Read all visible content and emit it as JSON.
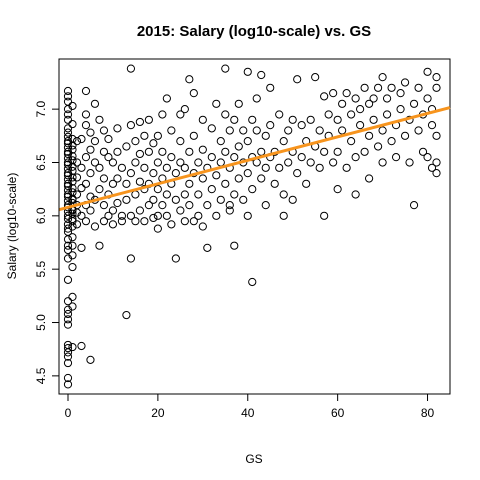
{
  "chart_data": {
    "type": "scatter",
    "title": "2015: Salary (log10-scale) vs. GS",
    "xlabel": "GS",
    "ylabel": "Salary (log10-scale)",
    "xlim": [
      -2,
      85
    ],
    "ylim": [
      4.33,
      7.47
    ],
    "xticks": [
      0,
      20,
      40,
      60,
      80
    ],
    "yticks": [
      4.5,
      5.0,
      5.5,
      6.0,
      6.5,
      7.0
    ],
    "fit_line": {
      "intercept": 6.08,
      "slope": 0.011,
      "color": "#f7941d"
    },
    "points": [
      [
        0,
        4.42
      ],
      [
        0,
        4.48
      ],
      [
        0,
        4.62
      ],
      [
        0,
        4.68
      ],
      [
        0,
        4.72
      ],
      [
        0,
        4.76
      ],
      [
        0,
        4.79
      ],
      [
        1,
        4.77
      ],
      [
        0,
        4.98
      ],
      [
        0,
        5.03
      ],
      [
        0,
        5.08
      ],
      [
        0,
        5.12
      ],
      [
        1,
        5.15
      ],
      [
        0,
        5.2
      ],
      [
        1,
        5.24
      ],
      [
        0,
        5.4
      ],
      [
        1,
        5.52
      ],
      [
        0,
        5.6
      ],
      [
        1,
        5.63
      ],
      [
        0,
        5.68
      ],
      [
        0,
        5.72
      ],
      [
        1,
        5.72
      ],
      [
        0,
        5.78
      ],
      [
        1,
        5.8
      ],
      [
        0,
        5.85
      ],
      [
        0,
        5.88
      ],
      [
        1,
        5.9
      ],
      [
        0,
        5.92
      ],
      [
        1,
        5.95
      ],
      [
        0,
        5.97
      ],
      [
        0,
        6.0
      ],
      [
        1,
        6.02
      ],
      [
        0,
        6.04
      ],
      [
        1,
        6.06
      ],
      [
        0,
        6.08
      ],
      [
        0,
        6.1
      ],
      [
        1,
        6.12
      ],
      [
        0,
        6.14
      ],
      [
        1,
        6.16
      ],
      [
        0,
        6.18
      ],
      [
        0,
        6.2
      ],
      [
        1,
        6.22
      ],
      [
        0,
        6.24
      ],
      [
        1,
        6.26
      ],
      [
        0,
        6.28
      ],
      [
        0,
        6.3
      ],
      [
        1,
        6.32
      ],
      [
        0,
        6.34
      ],
      [
        1,
        6.36
      ],
      [
        0,
        6.38
      ],
      [
        0,
        6.4
      ],
      [
        1,
        6.42
      ],
      [
        0,
        6.44
      ],
      [
        1,
        6.46
      ],
      [
        0,
        6.48
      ],
      [
        0,
        6.5
      ],
      [
        1,
        6.52
      ],
      [
        0,
        6.54
      ],
      [
        1,
        6.56
      ],
      [
        0,
        6.58
      ],
      [
        0,
        6.6
      ],
      [
        1,
        6.62
      ],
      [
        0,
        6.64
      ],
      [
        1,
        6.66
      ],
      [
        0,
        6.68
      ],
      [
        0,
        6.7
      ],
      [
        1,
        6.72
      ],
      [
        0,
        6.74
      ],
      [
        0,
        6.78
      ],
      [
        0,
        6.82
      ],
      [
        1,
        6.86
      ],
      [
        0,
        6.9
      ],
      [
        0,
        6.95
      ],
      [
        0,
        7.0
      ],
      [
        1,
        7.03
      ],
      [
        0,
        7.07
      ],
      [
        0,
        7.12
      ],
      [
        0,
        7.17
      ],
      [
        1,
        6.05
      ],
      [
        1,
        6.15
      ],
      [
        1,
        5.97
      ],
      [
        2,
        6.1
      ],
      [
        2,
        6.2
      ],
      [
        2,
        6.36
      ],
      [
        2,
        6.5
      ],
      [
        2,
        6.7
      ],
      [
        2,
        6.03
      ],
      [
        2,
        5.92
      ],
      [
        3,
        6.0
      ],
      [
        3,
        6.26
      ],
      [
        3,
        6.45
      ],
      [
        3,
        6.72
      ],
      [
        3,
        5.7
      ],
      [
        3,
        4.78
      ],
      [
        4,
        6.1
      ],
      [
        4,
        6.3
      ],
      [
        4,
        6.55
      ],
      [
        4,
        6.85
      ],
      [
        4,
        6.95
      ],
      [
        4,
        7.17
      ],
      [
        4,
        5.95
      ],
      [
        5,
        6.05
      ],
      [
        5,
        6.18
      ],
      [
        5,
        6.4
      ],
      [
        5,
        6.62
      ],
      [
        5,
        6.78
      ],
      [
        5,
        4.65
      ],
      [
        6,
        6.15
      ],
      [
        6,
        6.5
      ],
      [
        6,
        6.7
      ],
      [
        6,
        5.9
      ],
      [
        6,
        7.05
      ],
      [
        7,
        6.25
      ],
      [
        7,
        6.45
      ],
      [
        7,
        6.9
      ],
      [
        7,
        5.72
      ],
      [
        8,
        6.1
      ],
      [
        8,
        6.35
      ],
      [
        8,
        6.6
      ],
      [
        8,
        6.8
      ],
      [
        8,
        5.95
      ],
      [
        9,
        6.2
      ],
      [
        9,
        6.55
      ],
      [
        9,
        6.72
      ],
      [
        9,
        6.0
      ],
      [
        10,
        6.3
      ],
      [
        10,
        6.5
      ],
      [
        10,
        6.05
      ],
      [
        10,
        5.92
      ],
      [
        11,
        6.35
      ],
      [
        11,
        6.6
      ],
      [
        11,
        6.82
      ],
      [
        11,
        6.12
      ],
      [
        12,
        6.45
      ],
      [
        12,
        6.0
      ],
      [
        12,
        5.95
      ],
      [
        13,
        6.15
      ],
      [
        13,
        6.65
      ],
      [
        13,
        5.07
      ],
      [
        13,
        6.3
      ],
      [
        14,
        6.0
      ],
      [
        14,
        6.4
      ],
      [
        14,
        6.85
      ],
      [
        14,
        7.38
      ],
      [
        14,
        5.6
      ],
      [
        15,
        6.2
      ],
      [
        15,
        6.5
      ],
      [
        15,
        6.7
      ],
      [
        15,
        5.95
      ],
      [
        16,
        6.05
      ],
      [
        16,
        6.32
      ],
      [
        16,
        6.58
      ],
      [
        16,
        6.88
      ],
      [
        17,
        5.95
      ],
      [
        17,
        6.25
      ],
      [
        17,
        6.45
      ],
      [
        17,
        6.75
      ],
      [
        18,
        6.1
      ],
      [
        18,
        6.3
      ],
      [
        18,
        6.6
      ],
      [
        18,
        6.9
      ],
      [
        19,
        5.98
      ],
      [
        19,
        6.4
      ],
      [
        19,
        6.68
      ],
      [
        19,
        6.15
      ],
      [
        20,
        6.0
      ],
      [
        20,
        6.25
      ],
      [
        20,
        6.5
      ],
      [
        20,
        6.75
      ],
      [
        20,
        5.88
      ],
      [
        21,
        6.1
      ],
      [
        21,
        6.35
      ],
      [
        21,
        6.6
      ],
      [
        21,
        6.95
      ],
      [
        22,
        6.2
      ],
      [
        22,
        6.45
      ],
      [
        22,
        6.0
      ],
      [
        22,
        7.1
      ],
      [
        23,
        5.92
      ],
      [
        23,
        6.3
      ],
      [
        23,
        6.55
      ],
      [
        23,
        6.8
      ],
      [
        24,
        6.4
      ],
      [
        24,
        6.15
      ],
      [
        24,
        5.6
      ],
      [
        25,
        6.05
      ],
      [
        25,
        6.5
      ],
      [
        25,
        6.7
      ],
      [
        25,
        6.95
      ],
      [
        26,
        6.2
      ],
      [
        26,
        6.45
      ],
      [
        26,
        5.95
      ],
      [
        26,
        7.0
      ],
      [
        27,
        6.3
      ],
      [
        27,
        6.6
      ],
      [
        27,
        6.1
      ],
      [
        27,
        7.28
      ],
      [
        28,
        5.95
      ],
      [
        28,
        6.4
      ],
      [
        28,
        6.75
      ],
      [
        28,
        7.15
      ],
      [
        29,
        6.2
      ],
      [
        29,
        6.5
      ],
      [
        29,
        6.0
      ],
      [
        30,
        6.35
      ],
      [
        30,
        6.62
      ],
      [
        30,
        6.9
      ],
      [
        30,
        5.9
      ],
      [
        31,
        6.1
      ],
      [
        31,
        6.45
      ],
      [
        31,
        5.7
      ],
      [
        32,
        6.25
      ],
      [
        32,
        6.55
      ],
      [
        32,
        6.82
      ],
      [
        33,
        6.0
      ],
      [
        33,
        6.38
      ],
      [
        33,
        7.05
      ],
      [
        34,
        6.15
      ],
      [
        34,
        6.5
      ],
      [
        34,
        6.7
      ],
      [
        35,
        6.3
      ],
      [
        35,
        6.6
      ],
      [
        35,
        6.95
      ],
      [
        35,
        7.38
      ],
      [
        36,
        6.05
      ],
      [
        36,
        6.45
      ],
      [
        36,
        6.8
      ],
      [
        36,
        6.1
      ],
      [
        37,
        6.2
      ],
      [
        37,
        6.55
      ],
      [
        37,
        6.9
      ],
      [
        37,
        5.72
      ],
      [
        38,
        6.35
      ],
      [
        38,
        6.65
      ],
      [
        38,
        7.05
      ],
      [
        39,
        6.15
      ],
      [
        39,
        6.5
      ],
      [
        39,
        6.8
      ],
      [
        40,
        6.4
      ],
      [
        40,
        6.7
      ],
      [
        40,
        6.0
      ],
      [
        40,
        7.35
      ],
      [
        41,
        6.25
      ],
      [
        41,
        6.55
      ],
      [
        41,
        6.9
      ],
      [
        41,
        5.38
      ],
      [
        42,
        6.5
      ],
      [
        42,
        6.8
      ],
      [
        42,
        7.1
      ],
      [
        43,
        6.35
      ],
      [
        43,
        6.6
      ],
      [
        43,
        7.32
      ],
      [
        44,
        6.45
      ],
      [
        44,
        6.75
      ],
      [
        44,
        6.1
      ],
      [
        45,
        6.55
      ],
      [
        45,
        6.85
      ],
      [
        45,
        7.2
      ],
      [
        46,
        6.3
      ],
      [
        46,
        6.6
      ],
      [
        47,
        6.45
      ],
      [
        47,
        6.95
      ],
      [
        48,
        6.2
      ],
      [
        48,
        6.7
      ],
      [
        48,
        6.0
      ],
      [
        49,
        6.5
      ],
      [
        49,
        6.8
      ],
      [
        50,
        6.6
      ],
      [
        50,
        6.9
      ],
      [
        50,
        6.15
      ],
      [
        51,
        6.4
      ],
      [
        51,
        7.28
      ],
      [
        52,
        6.55
      ],
      [
        52,
        6.85
      ],
      [
        53,
        6.3
      ],
      [
        53,
        6.7
      ],
      [
        54,
        6.9
      ],
      [
        54,
        6.5
      ],
      [
        55,
        6.65
      ],
      [
        55,
        7.3
      ],
      [
        56,
        6.45
      ],
      [
        56,
        6.8
      ],
      [
        57,
        6.6
      ],
      [
        57,
        7.12
      ],
      [
        57,
        6.0
      ],
      [
        58,
        6.75
      ],
      [
        58,
        6.95
      ],
      [
        59,
        6.5
      ],
      [
        59,
        7.15
      ],
      [
        60,
        6.6
      ],
      [
        60,
        6.9
      ],
      [
        60,
        6.25
      ],
      [
        61,
        6.8
      ],
      [
        61,
        7.05
      ],
      [
        62,
        6.45
      ],
      [
        62,
        7.15
      ],
      [
        63,
        6.7
      ],
      [
        63,
        6.95
      ],
      [
        64,
        6.55
      ],
      [
        64,
        7.1
      ],
      [
        64,
        6.2
      ],
      [
        65,
        6.85
      ],
      [
        65,
        7.0
      ],
      [
        66,
        6.6
      ],
      [
        66,
        7.2
      ],
      [
        67,
        6.75
      ],
      [
        67,
        7.05
      ],
      [
        67,
        6.35
      ],
      [
        68,
        6.9
      ],
      [
        68,
        7.1
      ],
      [
        69,
        6.65
      ],
      [
        69,
        7.2
      ],
      [
        70,
        6.8
      ],
      [
        70,
        7.3
      ],
      [
        70,
        6.5
      ],
      [
        71,
        6.95
      ],
      [
        71,
        7.1
      ],
      [
        72,
        6.7
      ],
      [
        72,
        7.2
      ],
      [
        73,
        6.85
      ],
      [
        73,
        6.55
      ],
      [
        74,
        7.0
      ],
      [
        74,
        7.15
      ],
      [
        75,
        6.75
      ],
      [
        75,
        7.25
      ],
      [
        76,
        6.9
      ],
      [
        76,
        6.5
      ],
      [
        77,
        7.05
      ],
      [
        77,
        6.1
      ],
      [
        78,
        6.8
      ],
      [
        78,
        7.2
      ],
      [
        79,
        6.95
      ],
      [
        79,
        6.6
      ],
      [
        80,
        7.1
      ],
      [
        80,
        6.55
      ],
      [
        80,
        7.35
      ],
      [
        81,
        6.85
      ],
      [
        81,
        7.0
      ],
      [
        81,
        6.45
      ],
      [
        82,
        6.5
      ],
      [
        82,
        6.75
      ],
      [
        82,
        7.2
      ],
      [
        82,
        6.4
      ],
      [
        82,
        7.3
      ]
    ]
  }
}
